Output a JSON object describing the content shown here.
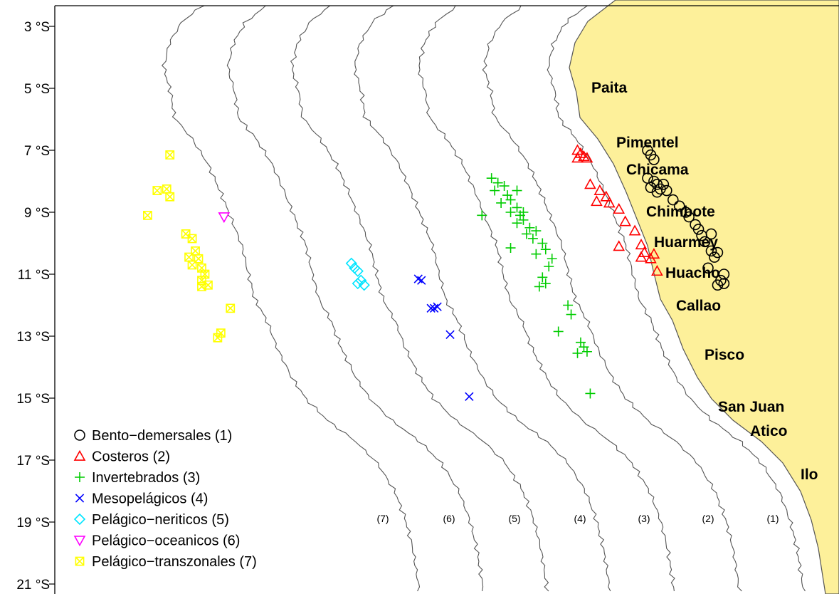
{
  "latitude_labels": [
    "3 °S",
    "5 °S",
    "7 °S",
    "9 °S",
    "11 °S",
    "13 °S",
    "15 °S",
    "17 °S",
    "19 °S",
    "21 °S"
  ],
  "cities": [
    "Paita",
    "Pimentel",
    "Chicama",
    "Chimbote",
    "Huarmey",
    "Huacho",
    "Callao",
    "Pisco",
    "San Juan",
    "Atico",
    "Ilo"
  ],
  "band_labels": [
    "(7)",
    "(6)",
    "(5)",
    "(4)",
    "(3)",
    "(2)",
    "(1)"
  ],
  "legend": [
    {
      "label": "Bento−demersales (1)",
      "symbol": "circle",
      "color": "#000000"
    },
    {
      "label": "Costeros (2)",
      "symbol": "triangle-up",
      "color": "#ff0000"
    },
    {
      "label": "Invertebrados (3)",
      "symbol": "plus",
      "color": "#00cc00"
    },
    {
      "label": "Mesopelágicos (4)",
      "symbol": "cross",
      "color": "#0000ff"
    },
    {
      "label": "Pelágico−neriticos (5)",
      "symbol": "diamond",
      "color": "#00e5ff"
    },
    {
      "label": "Pelágico−oceanicos (6)",
      "symbol": "triangle-down",
      "color": "#ff00ff"
    },
    {
      "label": "Pelágico−transzonales (7)",
      "symbol": "square-x",
      "color": "#ffff00"
    }
  ],
  "colors": {
    "land": "#fdf09a",
    "contour": "#555555",
    "frame": "#000000"
  },
  "chart_data": {
    "type": "scatter",
    "ylim": [
      "3 °S",
      "21 °S"
    ],
    "series": [
      {
        "name": "Bento−demersales (1)",
        "points": [
          [
            -79.95,
            7.0
          ],
          [
            -79.9,
            7.15
          ],
          [
            -79.85,
            7.3
          ],
          [
            -79.95,
            7.9
          ],
          [
            -79.85,
            8.0
          ],
          [
            -79.8,
            8.1
          ],
          [
            -79.7,
            8.1
          ],
          [
            -79.9,
            8.2
          ],
          [
            -79.75,
            8.25
          ],
          [
            -79.8,
            8.35
          ],
          [
            -79.65,
            8.3
          ],
          [
            -79.55,
            8.6
          ],
          [
            -79.45,
            8.8
          ],
          [
            -79.35,
            9.0
          ],
          [
            -79.3,
            9.15
          ],
          [
            -79.2,
            9.4
          ],
          [
            -79.15,
            9.55
          ],
          [
            -79.1,
            9.75
          ],
          [
            -78.95,
            9.7
          ],
          [
            -79.05,
            9.95
          ],
          [
            -78.95,
            10.25
          ],
          [
            -78.9,
            10.45
          ],
          [
            -78.85,
            10.3
          ],
          [
            -79.0,
            10.8
          ],
          [
            -78.75,
            11.0
          ],
          [
            -78.8,
            11.2
          ],
          [
            -78.85,
            11.35
          ],
          [
            -78.75,
            11.3
          ]
        ]
      },
      {
        "name": "Costeros (2)",
        "points": [
          [
            -81.05,
            7.0
          ],
          [
            -81.0,
            7.1
          ],
          [
            -80.95,
            7.2
          ],
          [
            -81.05,
            7.25
          ],
          [
            -80.9,
            7.25
          ],
          [
            -80.85,
            8.1
          ],
          [
            -80.7,
            8.3
          ],
          [
            -80.6,
            8.5
          ],
          [
            -80.75,
            8.65
          ],
          [
            -80.55,
            8.7
          ],
          [
            -80.4,
            8.9
          ],
          [
            -80.3,
            9.3
          ],
          [
            -80.15,
            9.6
          ],
          [
            -80.05,
            10.05
          ],
          [
            -80.0,
            10.3
          ],
          [
            -79.9,
            10.5
          ],
          [
            -80.05,
            10.45
          ],
          [
            -79.85,
            10.35
          ],
          [
            -79.8,
            10.9
          ],
          [
            -80.4,
            10.1
          ]
        ]
      },
      {
        "name": "Invertebrados (3)",
        "points": [
          [
            -82.4,
            7.9
          ],
          [
            -82.3,
            8.05
          ],
          [
            -82.2,
            8.15
          ],
          [
            -82.35,
            8.3
          ],
          [
            -82.15,
            8.45
          ],
          [
            -82.1,
            8.6
          ],
          [
            -82.25,
            8.7
          ],
          [
            -82.0,
            8.85
          ],
          [
            -82.1,
            9.0
          ],
          [
            -81.95,
            9.1
          ],
          [
            -81.9,
            9.25
          ],
          [
            -82.0,
            9.35
          ],
          [
            -81.8,
            9.5
          ],
          [
            -81.85,
            9.7
          ],
          [
            -81.75,
            9.85
          ],
          [
            -81.6,
            10.0
          ],
          [
            -81.55,
            10.2
          ],
          [
            -81.7,
            10.35
          ],
          [
            -81.45,
            10.5
          ],
          [
            -81.5,
            10.75
          ],
          [
            -81.6,
            11.1
          ],
          [
            -81.55,
            11.3
          ],
          [
            -81.65,
            11.4
          ],
          [
            -82.55,
            9.1
          ],
          [
            -82.1,
            10.15
          ],
          [
            -81.2,
            12.0
          ],
          [
            -81.15,
            12.3
          ],
          [
            -81.35,
            12.85
          ],
          [
            -81.0,
            13.2
          ],
          [
            -80.95,
            13.35
          ],
          [
            -81.05,
            13.55
          ],
          [
            -80.9,
            13.5
          ],
          [
            -80.85,
            14.85
          ],
          [
            -82.0,
            8.3
          ],
          [
            -81.7,
            9.6
          ],
          [
            -81.9,
            9.0
          ]
        ]
      },
      {
        "name": "Mesopelágicos (4)",
        "points": [
          [
            -83.55,
            11.15
          ],
          [
            -83.5,
            11.2
          ],
          [
            -83.35,
            12.1
          ],
          [
            -83.3,
            12.1
          ],
          [
            -83.25,
            12.05
          ],
          [
            -83.05,
            12.95
          ],
          [
            -82.75,
            14.95
          ]
        ]
      },
      {
        "name": "Pelágico−neriticos (5)",
        "points": [
          [
            -84.6,
            10.65
          ],
          [
            -84.55,
            10.8
          ],
          [
            -84.5,
            10.9
          ],
          [
            -84.45,
            11.2
          ],
          [
            -84.4,
            11.35
          ],
          [
            -84.5,
            11.3
          ]
        ]
      },
      {
        "name": "Pelágico−oceanicos (6)",
        "points": [
          [
            -86.6,
            9.15
          ]
        ]
      },
      {
        "name": "Pelágico−transzonales (7)",
        "points": [
          [
            -87.45,
            7.15
          ],
          [
            -87.65,
            8.3
          ],
          [
            -87.5,
            8.25
          ],
          [
            -87.45,
            8.5
          ],
          [
            -87.8,
            9.1
          ],
          [
            -87.2,
            9.7
          ],
          [
            -87.1,
            9.85
          ],
          [
            -87.05,
            10.25
          ],
          [
            -87.15,
            10.45
          ],
          [
            -87.0,
            10.5
          ],
          [
            -87.1,
            10.7
          ],
          [
            -86.95,
            10.8
          ],
          [
            -86.9,
            11.0
          ],
          [
            -86.95,
            11.2
          ],
          [
            -86.85,
            11.35
          ],
          [
            -86.95,
            11.4
          ],
          [
            -86.5,
            12.1
          ],
          [
            -86.65,
            12.9
          ],
          [
            -86.7,
            13.05
          ]
        ]
      }
    ]
  }
}
